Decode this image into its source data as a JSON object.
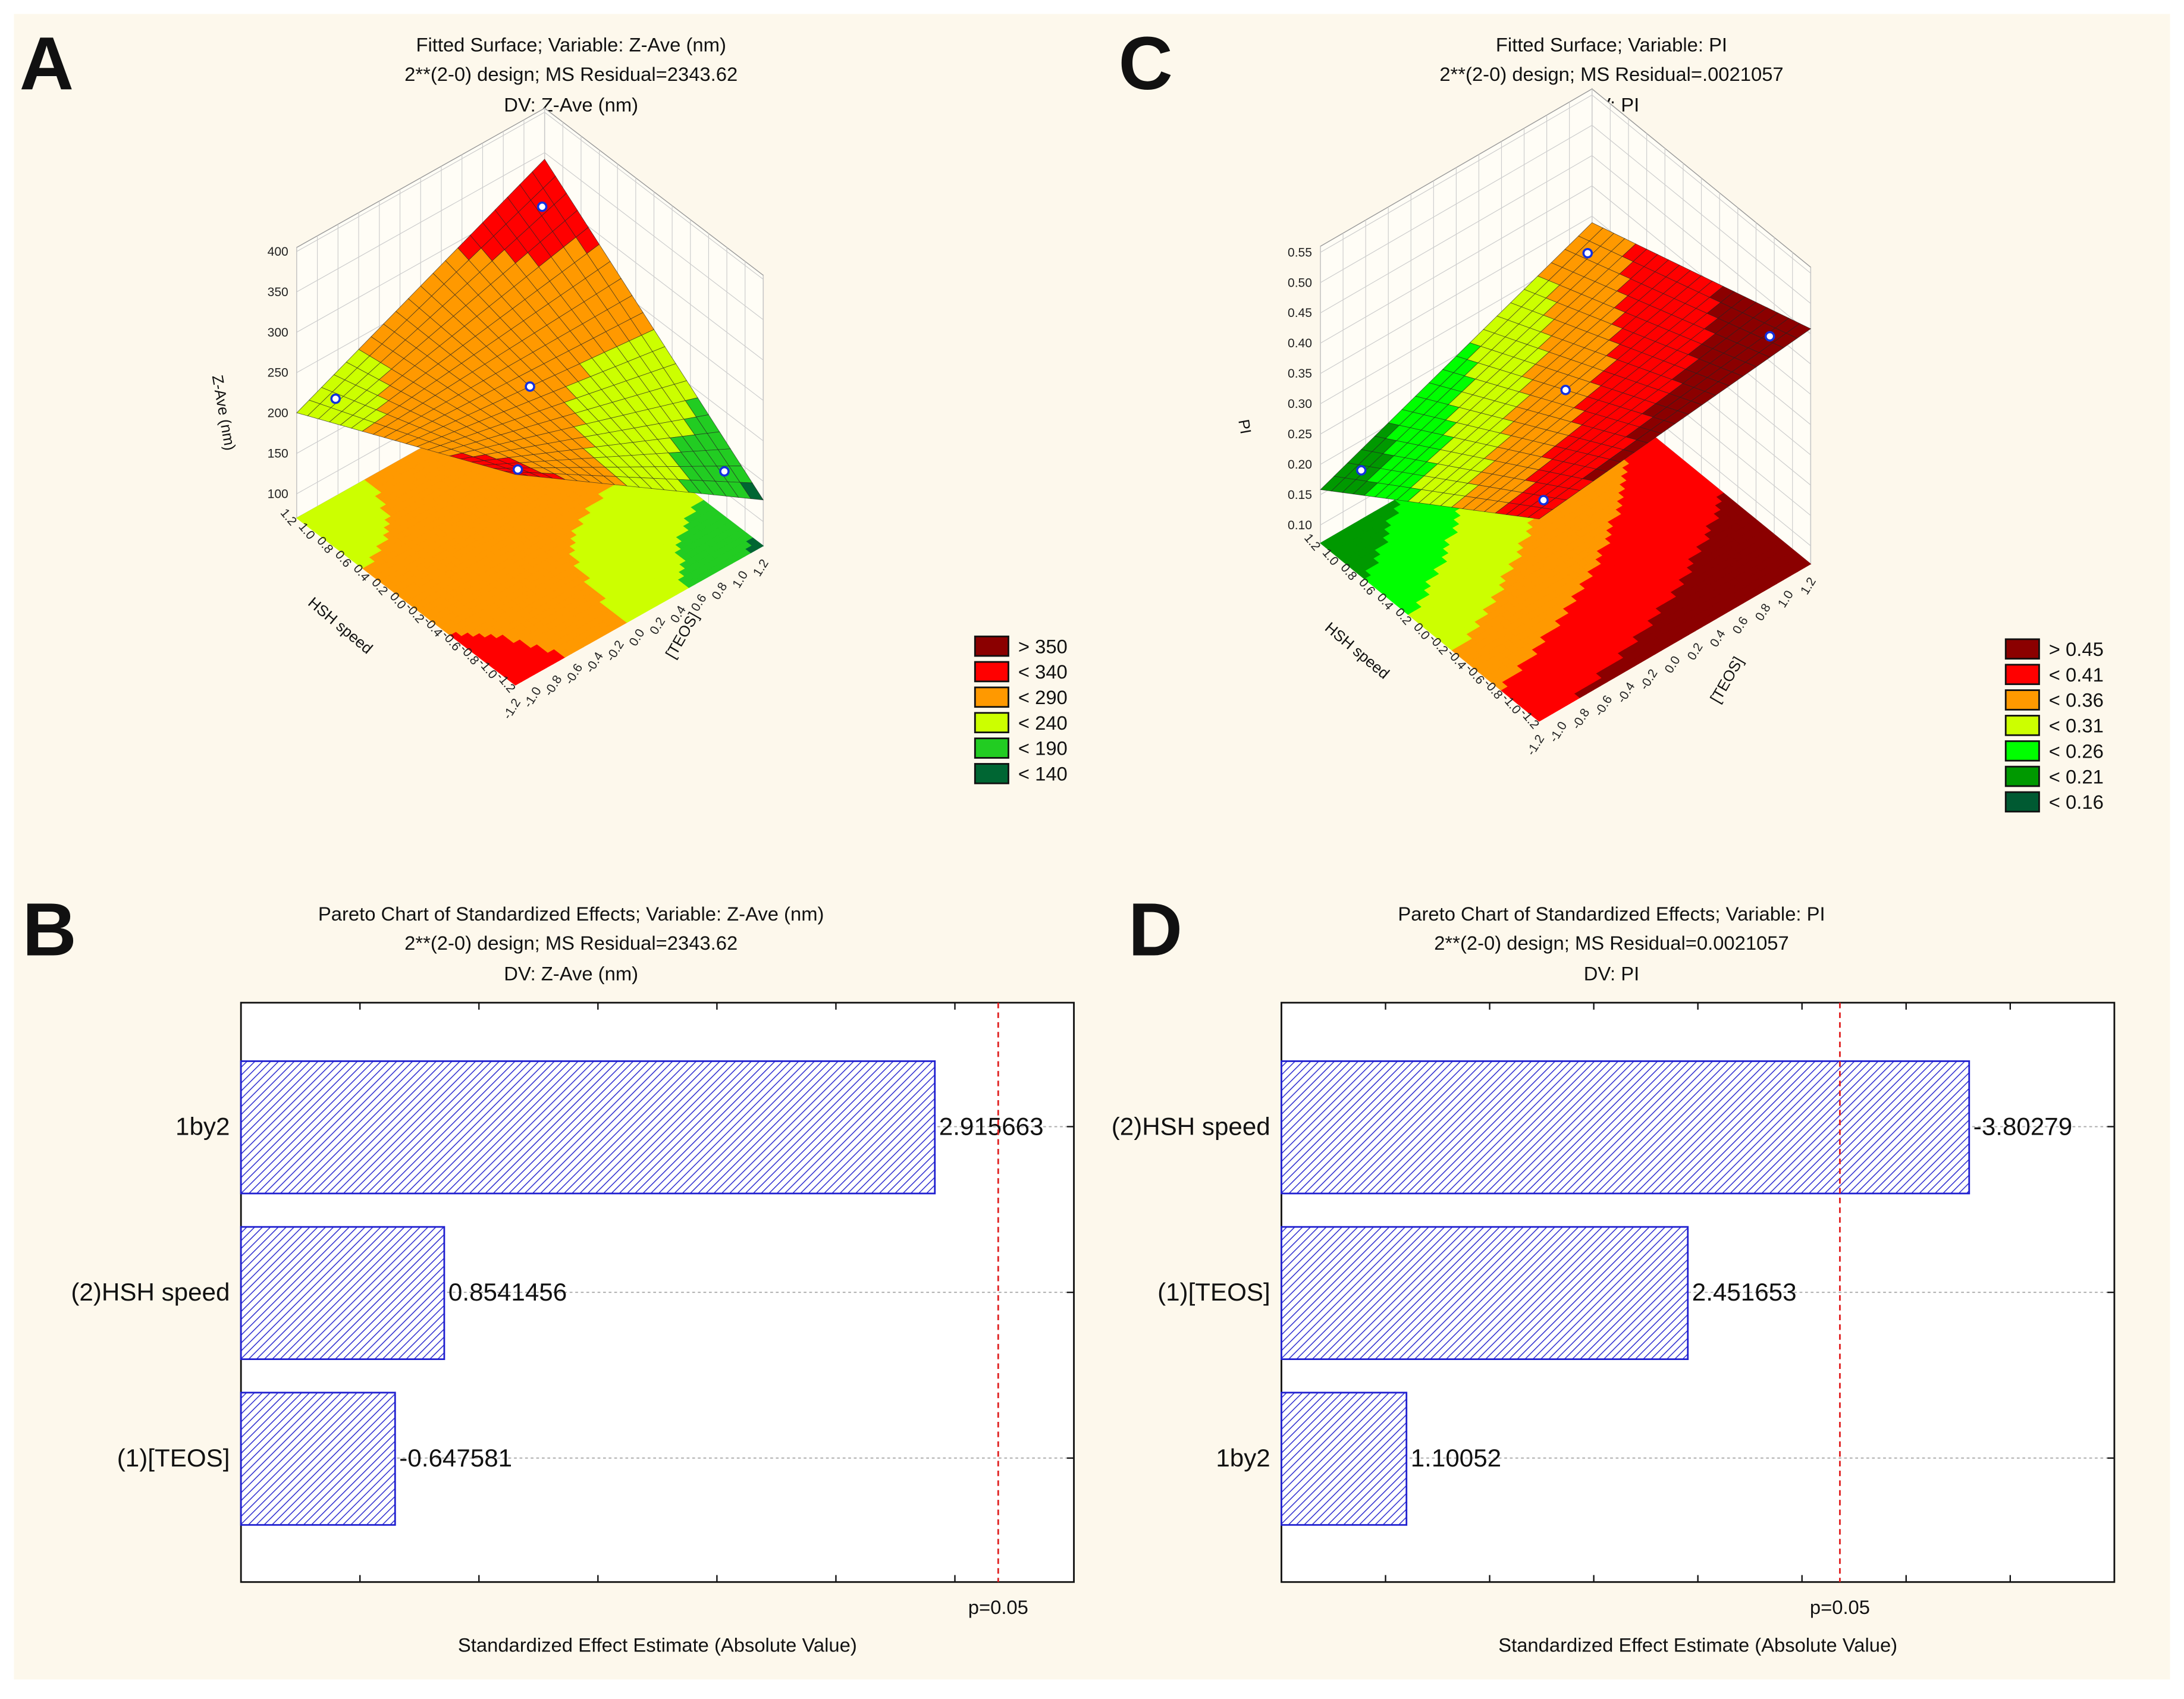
{
  "panels": {
    "A": {
      "letter": "A",
      "title": [
        "Fitted Surface; Variable: Z-Ave (nm)",
        "2**(2-0) design; MS Residual=2343.62",
        "DV: Z-Ave (nm)"
      ]
    },
    "B": {
      "letter": "B",
      "title": [
        "Pareto Chart of Standardized Effects; Variable: Z-Ave (nm)",
        "2**(2-0) design; MS Residual=2343.62",
        "DV: Z-Ave (nm)"
      ]
    },
    "C": {
      "letter": "C",
      "title": [
        "Fitted Surface; Variable: PI",
        "2**(2-0) design; MS Residual=.0021057",
        "DV: PI"
      ]
    },
    "D": {
      "letter": "D",
      "title": [
        "Pareto Chart of Standardized Effects; Variable: PI",
        "2**(2-0) design; MS Residual=0.0021057",
        "DV: PI"
      ]
    }
  },
  "chart_data": [
    {
      "id": "A",
      "type": "surface",
      "xlabel": "[TEOS]",
      "ylabel": "HSH speed",
      "zlabel": "Z-Ave (nm)",
      "xlim": [
        -1.2,
        1.2
      ],
      "ylim": [
        -1.2,
        1.2
      ],
      "zlim": [
        70,
        405
      ],
      "xticks": [
        "-1.2",
        "-1.0",
        "-0.8",
        "-0.6",
        "-0.4",
        "-0.2",
        "0.0",
        "0.2",
        "0.4",
        "0.6",
        "0.8",
        "1.0",
        "1.2"
      ],
      "zticks": [
        "100",
        "150",
        "200",
        "250",
        "300",
        "350",
        "400"
      ],
      "fitted_model": {
        "intercept": 250,
        "b_TEOS": -13,
        "b_HSH": 17.6,
        "b_interaction": 60
      },
      "design_points": [
        [
          -1,
          -1
        ],
        [
          1,
          -1
        ],
        [
          -1,
          1
        ],
        [
          1,
          1
        ],
        [
          0,
          0
        ]
      ],
      "legend": [
        {
          "label": "> 350",
          "color": "#8b0000",
          "upper": null
        },
        {
          "label": "< 340",
          "color": "#ff0000",
          "upper": 340
        },
        {
          "label": "< 290",
          "color": "#ff9900",
          "upper": 290
        },
        {
          "label": "< 240",
          "color": "#ccff00",
          "upper": 240
        },
        {
          "label": "< 190",
          "color": "#22cc22",
          "upper": 190
        },
        {
          "label": "< 140",
          "color": "#006633",
          "upper": 140
        }
      ]
    },
    {
      "id": "B",
      "type": "bar",
      "orientation": "horizontal",
      "categories": [
        "1by2",
        "(2)HSH speed",
        "(1)[TEOS]"
      ],
      "values": [
        2.915663,
        0.8541456,
        -0.647581
      ],
      "value_labels": [
        "2.915663",
        "0.8541456",
        "-0.647581"
      ],
      "xlabel": "Standardized Effect Estimate (Absolute Value)",
      "xlim": [
        0,
        3.5
      ],
      "p_critical": 3.182,
      "p_label": "p=0.05"
    },
    {
      "id": "C",
      "type": "surface",
      "xlabel": "[TEOS]",
      "ylabel": "HSH speed",
      "zlabel": "PI",
      "xlim": [
        -1.2,
        1.2
      ],
      "ylim": [
        -1.2,
        1.2
      ],
      "zlim": [
        0.07,
        0.56
      ],
      "xticks": [
        "-1.2",
        "-1.0",
        "-0.8",
        "-0.6",
        "-0.4",
        "-0.2",
        "0.0",
        "0.2",
        "0.4",
        "0.6",
        "0.8",
        "1.0",
        "1.2"
      ],
      "zticks": [
        "0.10",
        "0.15",
        "0.20",
        "0.25",
        "0.30",
        "0.35",
        "0.40",
        "0.45",
        "0.50",
        "0.55"
      ],
      "fitted_model": {
        "intercept": 0.34,
        "b_TEOS": 0.049,
        "b_HSH": -0.076,
        "b_interaction": 0.022
      },
      "design_points": [
        [
          -1,
          -1
        ],
        [
          1,
          -1
        ],
        [
          -1,
          1
        ],
        [
          1,
          1
        ],
        [
          0,
          0
        ]
      ],
      "legend": [
        {
          "label": "> 0.45",
          "color": "#8b0000",
          "upper": null
        },
        {
          "label": "< 0.41",
          "color": "#ff0000",
          "upper": 0.41
        },
        {
          "label": "< 0.36",
          "color": "#ff9900",
          "upper": 0.36
        },
        {
          "label": "< 0.31",
          "color": "#ccff00",
          "upper": 0.31
        },
        {
          "label": "< 0.26",
          "color": "#00ff00",
          "upper": 0.26
        },
        {
          "label": "< 0.21",
          "color": "#009900",
          "upper": 0.21
        },
        {
          "label": "< 0.16",
          "color": "#005a32",
          "upper": 0.16
        }
      ]
    },
    {
      "id": "D",
      "type": "bar",
      "orientation": "horizontal",
      "categories": [
        "(2)HSH speed",
        "(1)[TEOS]",
        "1by2"
      ],
      "values": [
        -3.80279,
        2.451653,
        1.10052
      ],
      "value_labels": [
        "-3.80279",
        "2.451653",
        "1.10052"
      ],
      "xlabel": "Standardized Effect Estimate (Absolute Value)",
      "xlim": [
        0.5,
        4.5
      ],
      "p_critical": 3.182,
      "p_label": "p=0.05"
    }
  ]
}
